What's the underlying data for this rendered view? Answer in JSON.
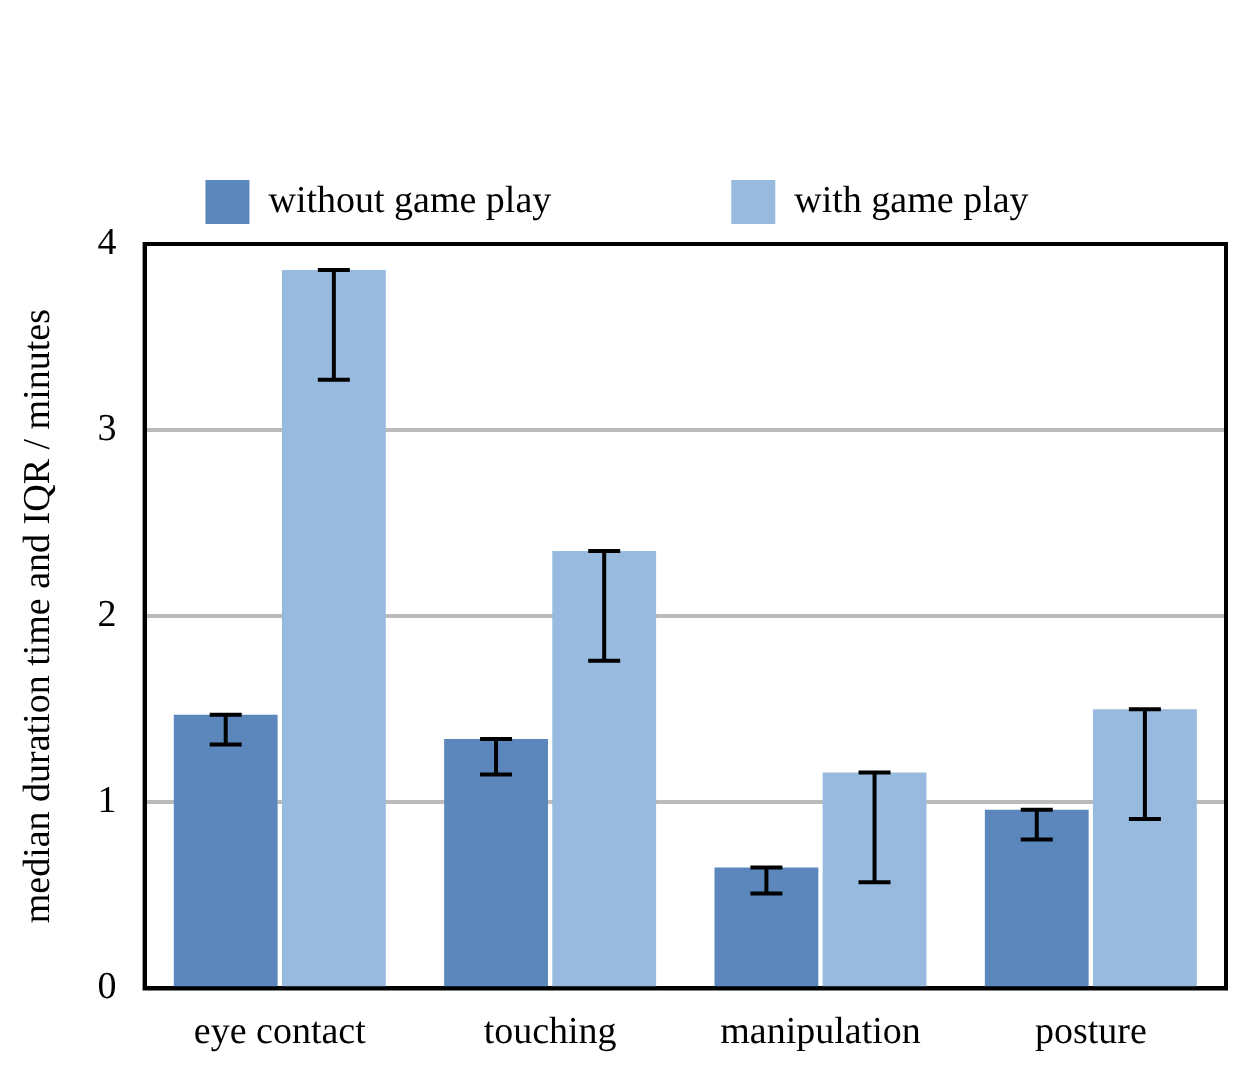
{
  "chart_data": {
    "type": "bar",
    "categories": [
      "eye contact",
      "touching",
      "manipulation",
      "posture"
    ],
    "ylabel": "median duration time and IQR / minutes",
    "series": [
      {
        "name": "without game play",
        "color": "#5b87bd",
        "values": [
          1.47,
          1.34,
          0.65,
          0.96
        ],
        "errors": [
          [
            1.31,
            1.47
          ],
          [
            1.15,
            1.34
          ],
          [
            0.51,
            0.65
          ],
          [
            0.8,
            0.96
          ]
        ]
      },
      {
        "name": "with game play",
        "color": "#97bade",
        "values": [
          3.86,
          2.35,
          1.16,
          1.5
        ],
        "errors": [
          [
            3.27,
            3.86
          ],
          [
            1.76,
            2.35
          ],
          [
            0.57,
            1.16
          ],
          [
            0.91,
            1.5
          ]
        ]
      }
    ],
    "ylim": [
      0,
      4
    ],
    "yticks": [
      0,
      1,
      2,
      3,
      4
    ],
    "grid": "y",
    "legend": "top"
  }
}
